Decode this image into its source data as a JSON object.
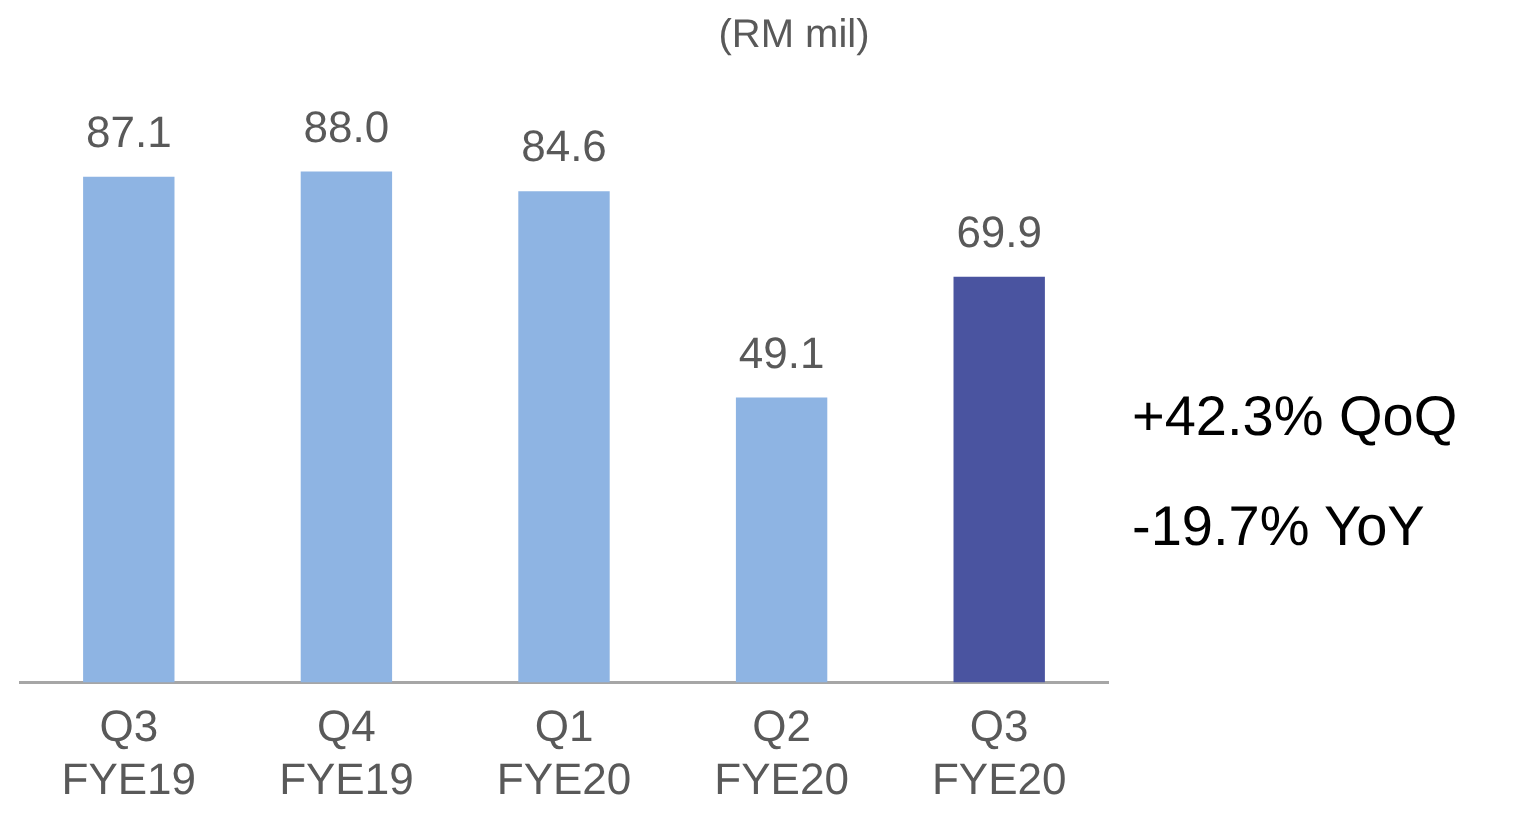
{
  "chart_data": {
    "type": "bar",
    "categories": [
      "Q3 FYE19",
      "Q4 FYE19",
      "Q1 FYE20",
      "Q2 FYE20",
      "Q3 FYE20"
    ],
    "values": [
      87.1,
      88.0,
      84.6,
      49.1,
      69.9
    ],
    "colors": [
      "#8eb4e3",
      "#8eb4e3",
      "#8eb4e3",
      "#8eb4e3",
      "#4a54a0"
    ],
    "value_labels": [
      "87.1",
      "88.0",
      "84.6",
      "49.1",
      "69.9"
    ],
    "legend": false,
    "annotations": [
      "(RM mil)",
      "+42.3% QoQ",
      "-19.7% YoY"
    ]
  }
}
